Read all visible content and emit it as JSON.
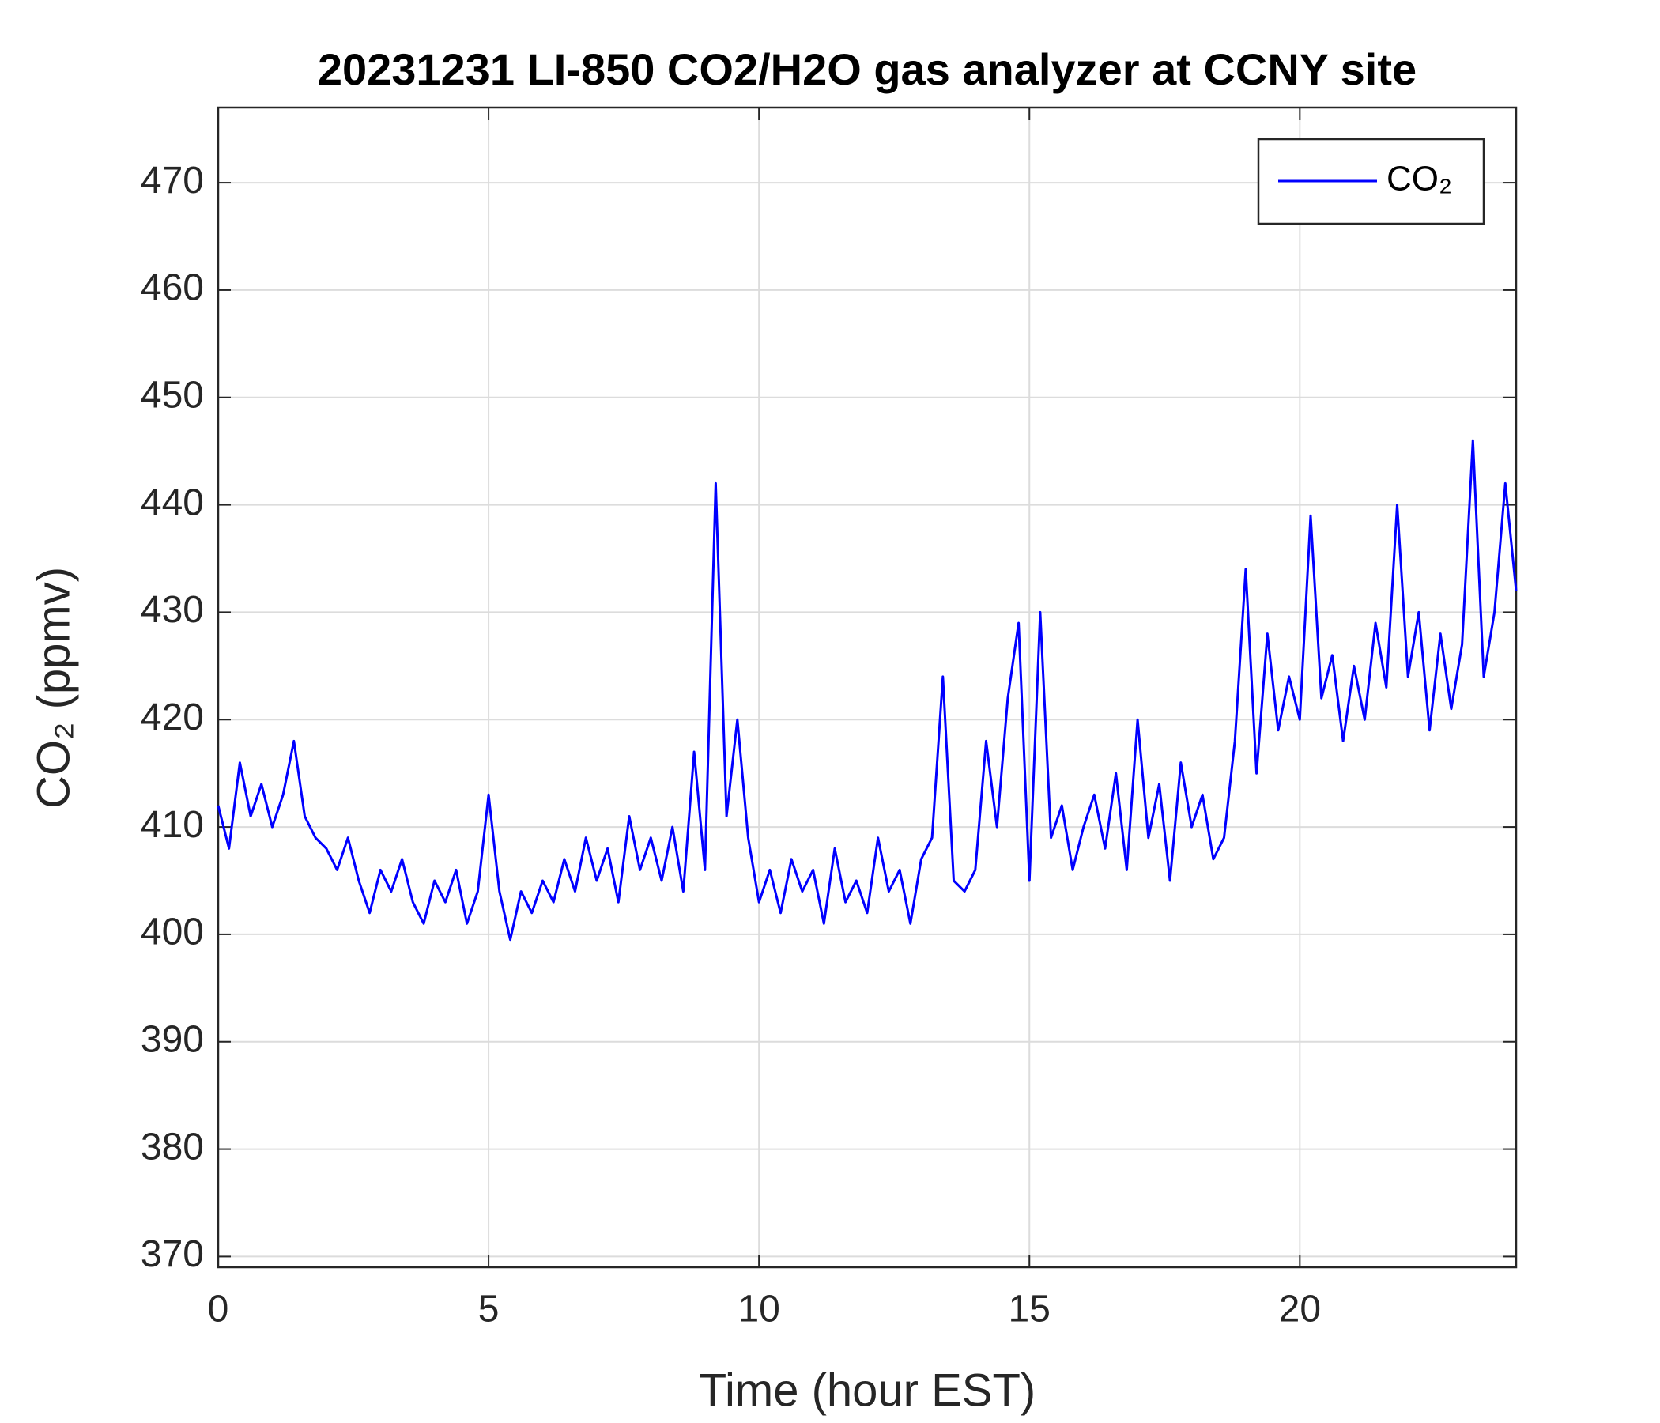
{
  "chart_data": {
    "type": "line",
    "title": "20231231 LI-850 CO2/H2O gas analyzer at CCNY site",
    "x_label": "Time (hour EST)",
    "y_label": "CO₂ (ppmv)",
    "xlim": [
      0,
      24
    ],
    "xticks": [
      0,
      5,
      10,
      15,
      20
    ],
    "ylim": [
      369,
      477
    ],
    "yticks": [
      370,
      380,
      390,
      400,
      410,
      420,
      430,
      440,
      450,
      460,
      470
    ],
    "grid": true,
    "legend": "upper right",
    "x": [
      0,
      0.2,
      0.4,
      0.6,
      0.8,
      1,
      1.2,
      1.4,
      1.6,
      1.8,
      2,
      2.2,
      2.4,
      2.6,
      2.8,
      3,
      3.2,
      3.4,
      3.6,
      3.8,
      4,
      4.2,
      4.4,
      4.6,
      4.8,
      5,
      5.2,
      5.4,
      5.6,
      5.8,
      6,
      6.2,
      6.4,
      6.6,
      6.8,
      7,
      7.2,
      7.4,
      7.6,
      7.8,
      8,
      8.2,
      8.4,
      8.6,
      8.8,
      9,
      9.2,
      9.4,
      9.6,
      9.8,
      10,
      10.2,
      10.4,
      10.6,
      10.8,
      11,
      11.2,
      11.4,
      11.6,
      11.8,
      12,
      12.2,
      12.4,
      12.6,
      12.8,
      13,
      13.2,
      13.4,
      13.6,
      13.8,
      14,
      14.2,
      14.4,
      14.6,
      14.8,
      15,
      15.2,
      15.4,
      15.6,
      15.8,
      16,
      16.2,
      16.4,
      16.6,
      16.8,
      17,
      17.2,
      17.4,
      17.6,
      17.8,
      18,
      18.2,
      18.4,
      18.6,
      18.8,
      19,
      19.2,
      19.4,
      19.6,
      19.8,
      20,
      20.2,
      20.4,
      20.6,
      20.8,
      21,
      21.2,
      21.4,
      21.6,
      21.8,
      22,
      22.2,
      22.4,
      22.6,
      22.8,
      23,
      23.2,
      23.4,
      23.6,
      23.8,
      24
    ],
    "series": [
      {
        "name": "CO₂",
        "color": "#0000ff",
        "values": [
          412,
          408,
          416,
          411,
          414,
          410,
          413,
          418,
          411,
          409,
          408,
          406,
          409,
          405,
          402,
          406,
          404,
          407,
          403,
          401,
          405,
          403,
          406,
          401,
          404,
          413,
          404,
          399.5,
          404,
          402,
          405,
          403,
          407,
          404,
          409,
          405,
          408,
          403,
          411,
          406,
          409,
          405,
          410,
          404,
          417,
          406,
          442,
          411,
          420,
          409,
          403,
          406,
          402,
          407,
          404,
          406,
          401,
          408,
          403,
          405,
          402,
          409,
          404,
          406,
          401,
          407,
          409,
          424,
          405,
          404,
          406,
          418,
          410,
          422,
          429,
          405,
          430,
          409,
          412,
          406,
          410,
          413,
          408,
          415,
          406,
          420,
          409,
          414,
          405,
          416,
          410,
          413,
          407,
          409,
          418,
          434,
          415,
          428,
          419,
          424,
          420,
          439,
          422,
          426,
          418,
          425,
          420,
          429,
          423,
          440,
          424,
          430,
          419,
          428,
          421,
          427,
          446,
          424,
          430,
          442,
          432
        ]
      }
    ]
  }
}
